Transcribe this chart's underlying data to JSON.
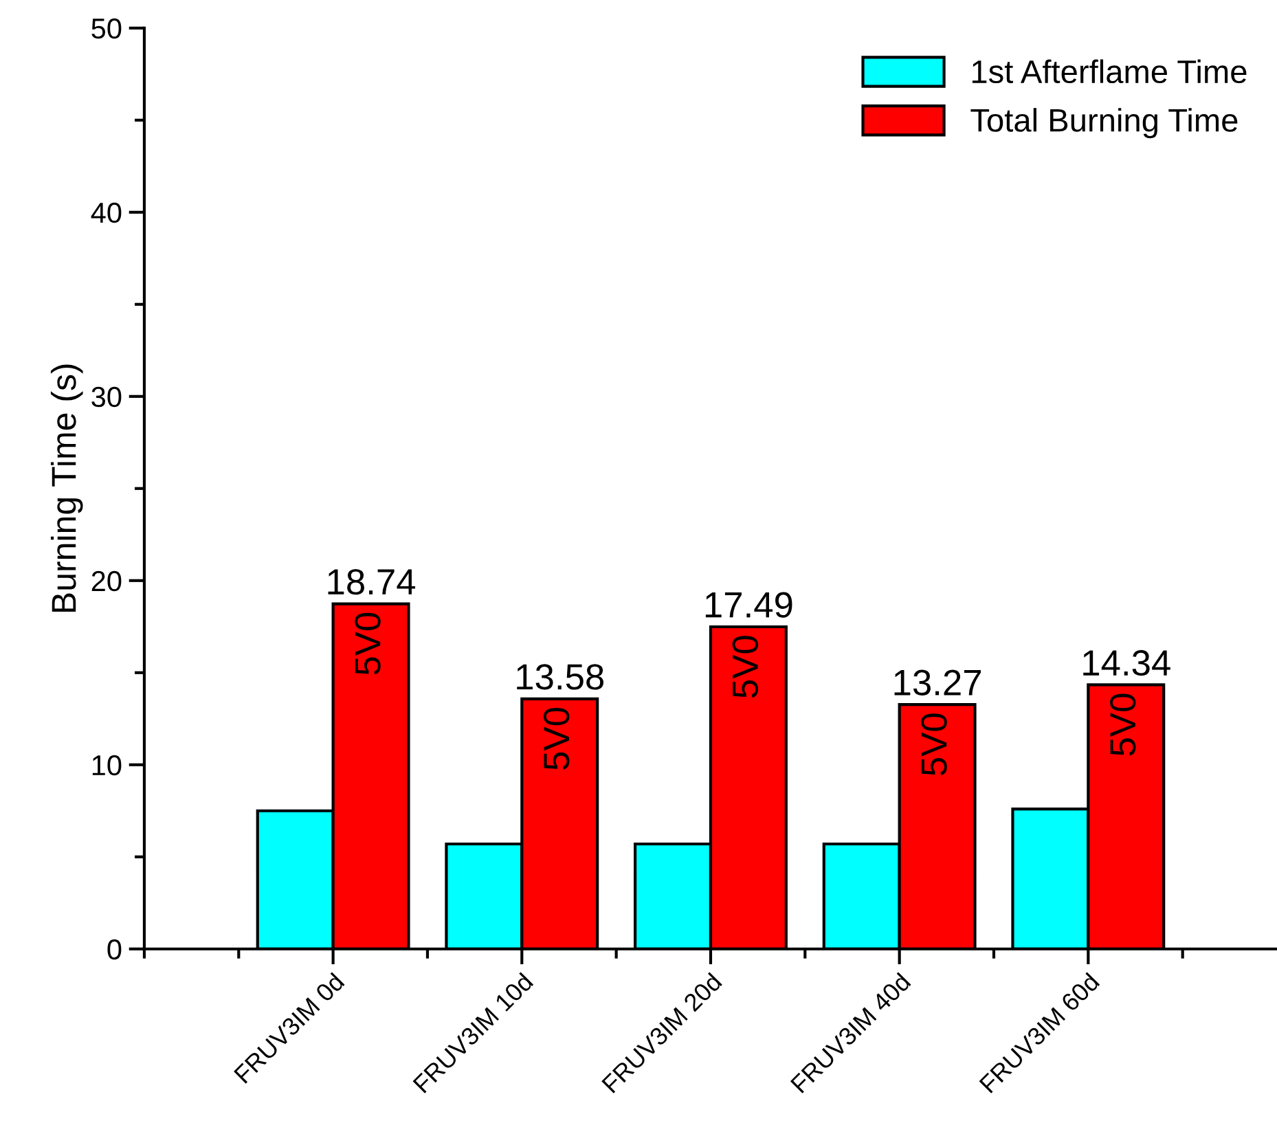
{
  "chart_data": {
    "type": "bar",
    "ylabel": "Burning Time (s)",
    "categories": [
      "FRUV3IM 0d",
      "FRUV3IM 10d",
      "FRUV3IM 20d",
      "FRUV3IM 40d",
      "FRUV3IM 60d"
    ],
    "series": [
      {
        "name": "1st Afterflame Time",
        "color": "#00ffff",
        "values": [
          7.5,
          5.7,
          5.7,
          5.7,
          7.6
        ]
      },
      {
        "name": "Total Burning Time",
        "color": "#ff0000",
        "values": [
          18.74,
          13.58,
          17.49,
          13.27,
          14.34
        ],
        "value_labels": [
          "18.74",
          "13.58",
          "17.49",
          "13.27",
          "14.34"
        ]
      }
    ],
    "annotations": [
      {
        "text": "5V0",
        "x": "FRUV3IM 0d",
        "y": 18.74
      },
      {
        "text": "5V0",
        "x": "FRUV3IM 10d",
        "y": 13.58
      },
      {
        "text": "5V0",
        "x": "FRUV3IM 20d",
        "y": 17.49
      },
      {
        "text": "5V0",
        "x": "FRUV3IM 40d",
        "y": 13.27
      },
      {
        "text": "5V0",
        "x": "FRUV3IM 60d",
        "y": 14.34
      }
    ],
    "ylim": [
      0,
      50
    ],
    "yticks": [
      0,
      10,
      20,
      30,
      40,
      50
    ],
    "legend": "top right",
    "grid": false
  }
}
